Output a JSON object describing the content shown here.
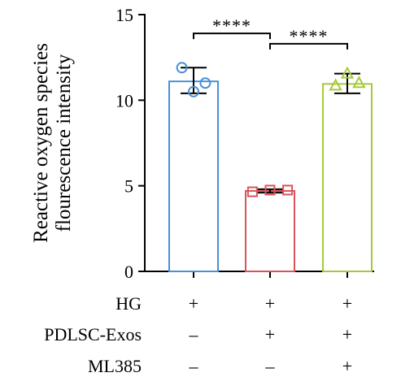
{
  "chart_data": {
    "type": "bar",
    "ylabel_lines": [
      "Reactive oxygen species",
      "flourescence intensity"
    ],
    "ylim": [
      0,
      15
    ],
    "yticks": [
      0,
      5,
      10,
      15
    ],
    "grid": false,
    "groups": [
      {
        "mean": 11.1,
        "sd_lower": 10.4,
        "sd_upper": 11.9,
        "color": "#4a90d9",
        "marker": "circle",
        "points": [
          11.9,
          10.5,
          11.0
        ]
      },
      {
        "mean": 4.7,
        "sd_lower": 4.6,
        "sd_upper": 4.8,
        "color": "#d9545a",
        "marker": "square",
        "points": [
          4.65,
          4.75,
          4.75
        ]
      },
      {
        "mean": 10.95,
        "sd_lower": 10.4,
        "sd_upper": 11.55,
        "color": "#a6c93a",
        "marker": "triangle",
        "points": [
          10.85,
          11.55,
          11.0
        ]
      }
    ],
    "significance": [
      {
        "from": 0,
        "to": 1,
        "label": "****",
        "y": 13.9
      },
      {
        "from": 1,
        "to": 2,
        "label": "****",
        "y": 13.3
      }
    ],
    "conditions": [
      {
        "label": "HG",
        "values": [
          "+",
          "+",
          "+"
        ]
      },
      {
        "label": "PDLSC-Exos",
        "values": [
          "–",
          "+",
          "+"
        ]
      },
      {
        "label": "ML385",
        "values": [
          "–",
          "–",
          "+"
        ]
      }
    ]
  }
}
